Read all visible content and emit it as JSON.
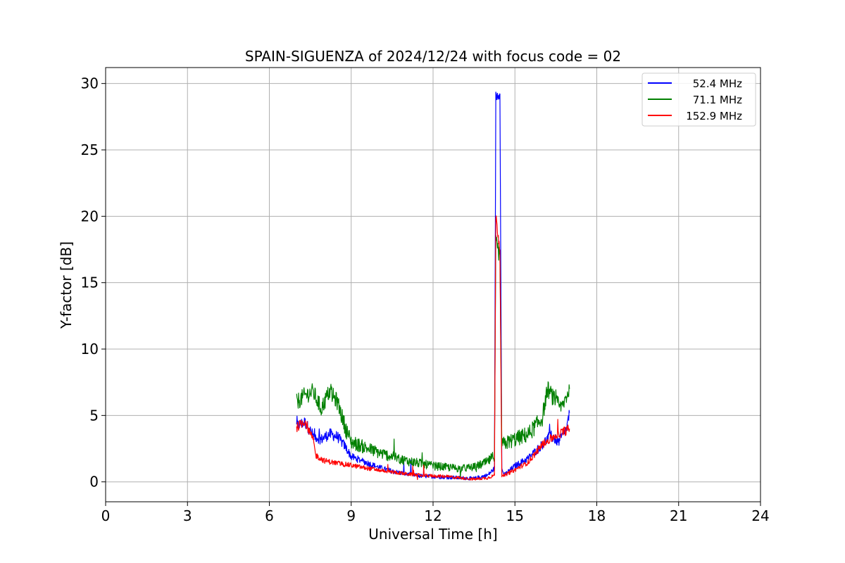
{
  "chart_data": {
    "type": "line",
    "title": "SPAIN-SIGUENZA of 2024/12/24 with focus code = 02",
    "xlabel": "Universal Time [h]",
    "ylabel": "Y-factor [dB]",
    "xlim": [
      0,
      24
    ],
    "ylim": [
      -1.5,
      31.2
    ],
    "xticks": [
      0,
      3,
      6,
      9,
      12,
      15,
      18,
      21,
      24
    ],
    "yticks": [
      0,
      5,
      10,
      15,
      20,
      25,
      30
    ],
    "grid": true,
    "legend_position": "top-right",
    "series": [
      {
        "name": "52.4 MHz",
        "color": "#0000ff",
        "noise": 0.55,
        "points": [
          [
            7.0,
            4.2
          ],
          [
            7.3,
            4.5
          ],
          [
            7.6,
            3.5
          ],
          [
            7.9,
            3.2
          ],
          [
            8.2,
            3.6
          ],
          [
            8.5,
            3.4
          ],
          [
            8.8,
            2.6
          ],
          [
            9.0,
            1.9
          ],
          [
            9.5,
            1.5
          ],
          [
            10.0,
            1.1
          ],
          [
            10.5,
            0.8
          ],
          [
            11.0,
            0.6
          ],
          [
            11.5,
            0.45
          ],
          [
            12.0,
            0.4
          ],
          [
            12.5,
            0.35
          ],
          [
            13.0,
            0.3
          ],
          [
            13.5,
            0.25
          ],
          [
            14.0,
            0.5
          ],
          [
            14.25,
            1.0
          ],
          [
            14.3,
            29.0
          ],
          [
            14.45,
            29.3
          ],
          [
            14.52,
            1.0
          ],
          [
            14.6,
            0.5
          ],
          [
            15.0,
            1.2
          ],
          [
            15.5,
            1.8
          ],
          [
            16.0,
            2.8
          ],
          [
            16.3,
            3.5
          ],
          [
            16.6,
            3.0
          ],
          [
            16.9,
            4.0
          ],
          [
            17.0,
            5.2
          ]
        ]
      },
      {
        "name": "71.1 MHz",
        "color": "#008000",
        "noise": 0.8,
        "points": [
          [
            7.0,
            6.0
          ],
          [
            7.3,
            6.5
          ],
          [
            7.6,
            6.8
          ],
          [
            7.9,
            5.5
          ],
          [
            8.2,
            6.8
          ],
          [
            8.5,
            6.0
          ],
          [
            8.8,
            4.0
          ],
          [
            9.0,
            3.0
          ],
          [
            9.5,
            2.6
          ],
          [
            10.0,
            2.2
          ],
          [
            10.5,
            1.9
          ],
          [
            11.0,
            1.6
          ],
          [
            11.5,
            1.4
          ],
          [
            12.0,
            1.2
          ],
          [
            12.5,
            1.1
          ],
          [
            13.0,
            1.0
          ],
          [
            13.5,
            1.1
          ],
          [
            14.0,
            1.5
          ],
          [
            14.25,
            2.0
          ],
          [
            14.3,
            18.0
          ],
          [
            14.45,
            17.0
          ],
          [
            14.52,
            2.8
          ],
          [
            15.0,
            3.2
          ],
          [
            15.5,
            3.6
          ],
          [
            16.0,
            4.8
          ],
          [
            16.2,
            7.0
          ],
          [
            16.5,
            6.0
          ],
          [
            16.7,
            5.5
          ],
          [
            17.0,
            7.0
          ]
        ]
      },
      {
        "name": "152.9 MHz",
        "color": "#ff0000",
        "noise": 0.45,
        "points": [
          [
            7.0,
            4.1
          ],
          [
            7.3,
            4.6
          ],
          [
            7.6,
            3.2
          ],
          [
            7.7,
            2.0
          ],
          [
            8.0,
            1.6
          ],
          [
            8.5,
            1.4
          ],
          [
            9.0,
            1.25
          ],
          [
            9.5,
            1.05
          ],
          [
            10.0,
            0.9
          ],
          [
            10.5,
            0.75
          ],
          [
            11.0,
            0.6
          ],
          [
            11.5,
            0.5
          ],
          [
            12.0,
            0.45
          ],
          [
            12.5,
            0.4
          ],
          [
            13.0,
            0.3
          ],
          [
            13.5,
            0.2
          ],
          [
            14.0,
            0.3
          ],
          [
            14.25,
            0.5
          ],
          [
            14.3,
            20.0
          ],
          [
            14.45,
            17.5
          ],
          [
            14.52,
            0.4
          ],
          [
            15.0,
            0.9
          ],
          [
            15.5,
            1.5
          ],
          [
            16.0,
            2.8
          ],
          [
            16.5,
            3.5
          ],
          [
            17.0,
            4.0
          ]
        ]
      }
    ]
  }
}
